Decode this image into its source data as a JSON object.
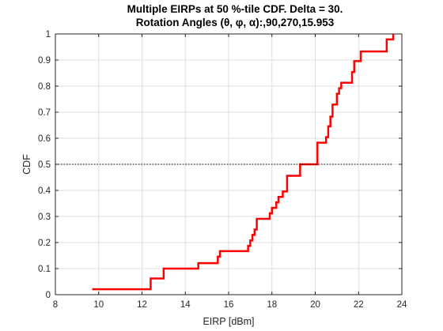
{
  "chart_data": {
    "type": "line",
    "title_line1": "Multiple EIRPs at 50 %-tile CDF. Delta = 30.",
    "title_line2": "Rotation Angles (θ, φ, α):,90,270,15.953",
    "xlabel": "EIRP [dBm]",
    "ylabel": "CDF",
    "xlim": [
      8,
      24
    ],
    "ylim": [
      0,
      1
    ],
    "xticks": [
      "8",
      "10",
      "12",
      "14",
      "16",
      "18",
      "20",
      "22",
      "24"
    ],
    "yticks": [
      "0",
      "0.1",
      "0.2",
      "0.3",
      "0.4",
      "0.5",
      "0.6",
      "0.7",
      "0.8",
      "0.9",
      "1"
    ],
    "grid": true,
    "series": [
      {
        "color": "#ff0000",
        "style": "stairs",
        "x": [
          9.7,
          12.4,
          13.0,
          14.6,
          15.5,
          15.6,
          16.9,
          17.0,
          17.1,
          17.2,
          17.3,
          17.9,
          18.0,
          18.2,
          18.3,
          18.5,
          18.7,
          19.3,
          20.1,
          20.5,
          20.6,
          20.7,
          20.8,
          21.0,
          21.1,
          21.2,
          21.7,
          21.8,
          22.1,
          23.3,
          23.6
        ],
        "y": [
          0.021,
          0.062,
          0.1,
          0.121,
          0.146,
          0.167,
          0.187,
          0.208,
          0.229,
          0.25,
          0.291,
          0.312,
          0.333,
          0.354,
          0.375,
          0.396,
          0.456,
          0.5,
          0.583,
          0.604,
          0.646,
          0.683,
          0.729,
          0.771,
          0.792,
          0.813,
          0.854,
          0.896,
          0.933,
          0.979,
          1.0
        ]
      },
      {
        "color": "#000000",
        "style": "dotted",
        "x": [
          8,
          23.6
        ],
        "y": [
          0.5,
          0.5
        ]
      }
    ]
  }
}
